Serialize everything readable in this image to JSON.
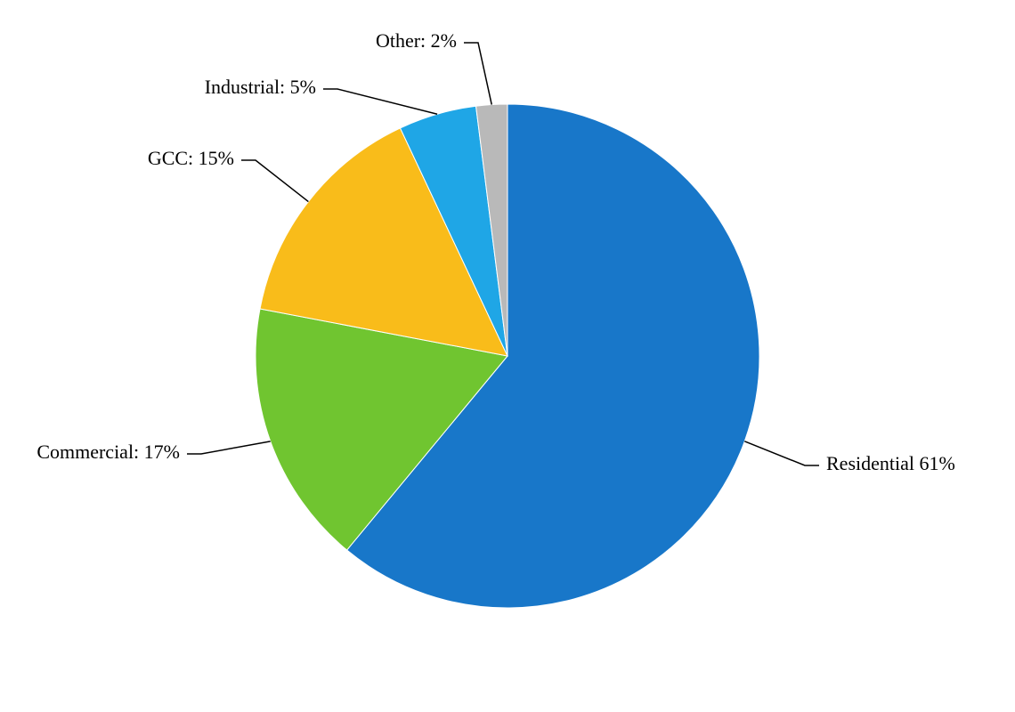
{
  "chart_data": {
    "type": "pie",
    "values": [
      61,
      17,
      15,
      5,
      2
    ],
    "value_labels": [
      "Residential 61%",
      "Commercial: 17%",
      "GCC: 15%",
      "Industrial: 5%",
      "Other: 2%"
    ],
    "colors": [
      "#1877c9",
      "#70c530",
      "#f9bc1a",
      "#1fa6e6",
      "#b9b9b9"
    ]
  }
}
